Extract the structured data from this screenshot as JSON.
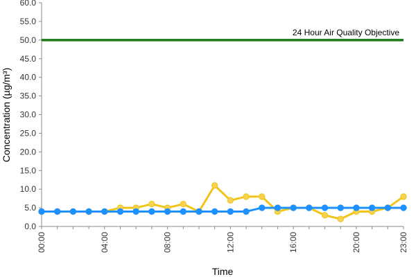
{
  "chart_data": {
    "type": "line",
    "title": "",
    "xlabel": "Time",
    "ylabel": "Concentration (µg/m³)",
    "ylim": [
      0,
      60
    ],
    "yticks": [
      "0.0",
      "5.0",
      "10.0",
      "15.0",
      "20.0",
      "25.0",
      "30.0",
      "35.0",
      "40.0",
      "45.0",
      "50.0",
      "55.0",
      "60.0"
    ],
    "x_ticks_shown": [
      "00:00",
      "04:00",
      "08:00",
      "12:00",
      "16:00",
      "20:00",
      "23:00"
    ],
    "x": [
      "00:00",
      "01:00",
      "02:00",
      "03:00",
      "04:00",
      "05:00",
      "06:00",
      "07:00",
      "08:00",
      "09:00",
      "10:00",
      "11:00",
      "12:00",
      "13:00",
      "14:00",
      "15:00",
      "16:00",
      "17:00",
      "18:00",
      "19:00",
      "20:00",
      "21:00",
      "22:00",
      "23:00"
    ],
    "grid": false,
    "legend": "none",
    "objective": {
      "label": "24 Hour Air Quality Objective",
      "value": 50,
      "color": "#1a7a1a"
    },
    "series": [
      {
        "color": "#f0c419",
        "marker_fill": "#f5d34f",
        "values": [
          4,
          4,
          4,
          4,
          4,
          5,
          5,
          6,
          5,
          6,
          4,
          11,
          7,
          8,
          8,
          4,
          5,
          5,
          3,
          2,
          4,
          4,
          5,
          8
        ]
      },
      {
        "color": "#1e90ff",
        "marker_fill": "#1e90ff",
        "values": [
          4,
          4,
          4,
          4,
          4,
          4,
          4,
          4,
          4,
          4,
          4,
          4,
          4,
          4,
          5,
          5,
          5,
          5,
          5,
          5,
          5,
          5,
          5,
          5
        ]
      }
    ]
  }
}
